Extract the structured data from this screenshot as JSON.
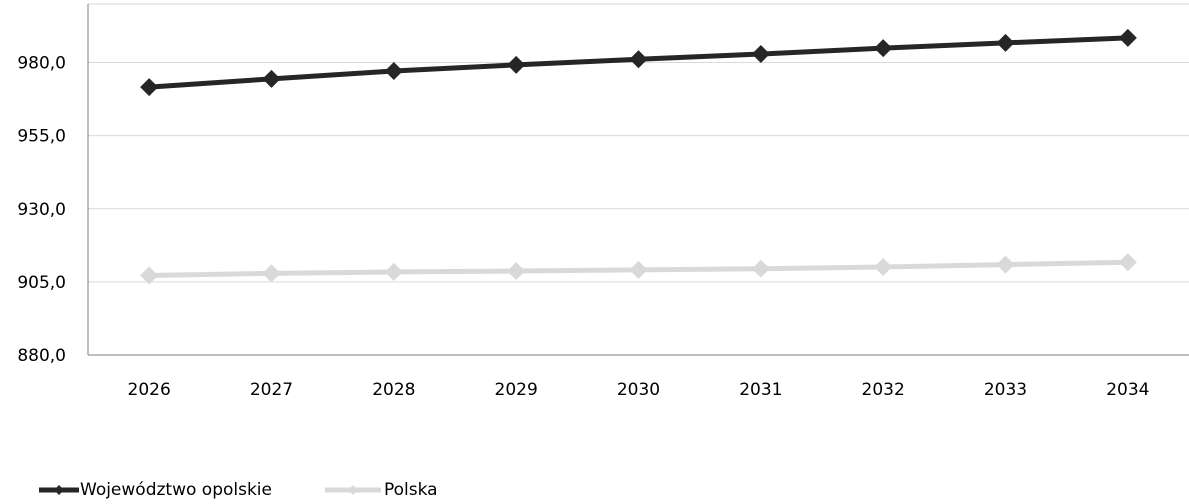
{
  "chart_data": {
    "type": "line",
    "categories": [
      "2026",
      "2027",
      "2028",
      "2029",
      "2030",
      "2031",
      "2032",
      "2033",
      "2034"
    ],
    "series": [
      {
        "name": "Województwo opolskie",
        "color": "#262626",
        "marker": "diamond",
        "values": [
          971.6,
          974.4,
          977.1,
          979.2,
          981.1,
          982.9,
          984.9,
          986.7,
          988.4
        ]
      },
      {
        "name": "Polska",
        "color": "#d9d9d9",
        "marker": "diamond",
        "values": [
          907.2,
          907.9,
          908.4,
          908.7,
          909.1,
          909.5,
          910.1,
          910.9,
          911.7
        ]
      }
    ],
    "ylim": [
      880,
      1000
    ],
    "yticks": [
      "880,0",
      "905,0",
      "930,0",
      "955,0",
      "980,0"
    ],
    "ytick_values": [
      880,
      905,
      930,
      955,
      980
    ],
    "grid": true,
    "legend_position": "bottom-left"
  }
}
